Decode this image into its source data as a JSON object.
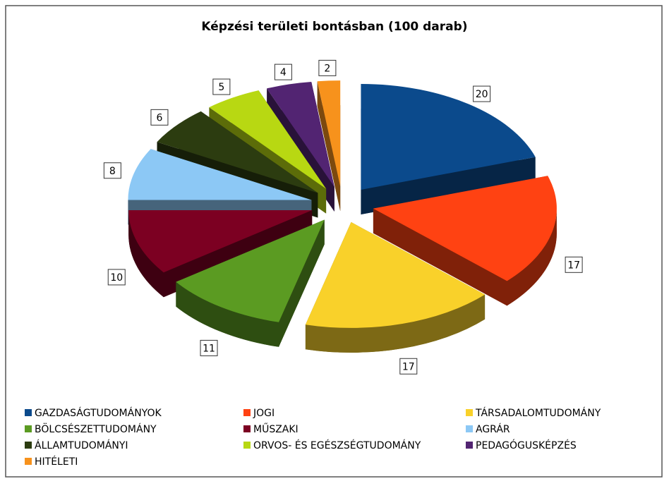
{
  "chart_data": {
    "type": "pie3d",
    "title": "Képzési területi bontásban (100 darab)",
    "categories": [
      "GAZDASÁGTUDOMÁNYOK",
      "JOGI",
      "TÁRSADALOMTUDOMÁNY",
      "BÖLCSÉSZETTUDOMÁNY",
      "MŰSZAKI",
      "AGRÁR",
      "ÁLLAMTUDOMÁNYI",
      "ORVOS- ÉS EGÉSZSÉGTUDOMÁNY",
      "PEDAGÓGUSKÉPZÉS",
      "HITÉLETI"
    ],
    "values": [
      20,
      17,
      17,
      11,
      10,
      8,
      6,
      5,
      4,
      2
    ],
    "colors": [
      "#0b4a8c",
      "#ff4212",
      "#f9d12a",
      "#5b9b22",
      "#7c0022",
      "#8cc8f5",
      "#2c3c10",
      "#b8d812",
      "#522472",
      "#f7921c"
    ],
    "legend": "bottom"
  }
}
